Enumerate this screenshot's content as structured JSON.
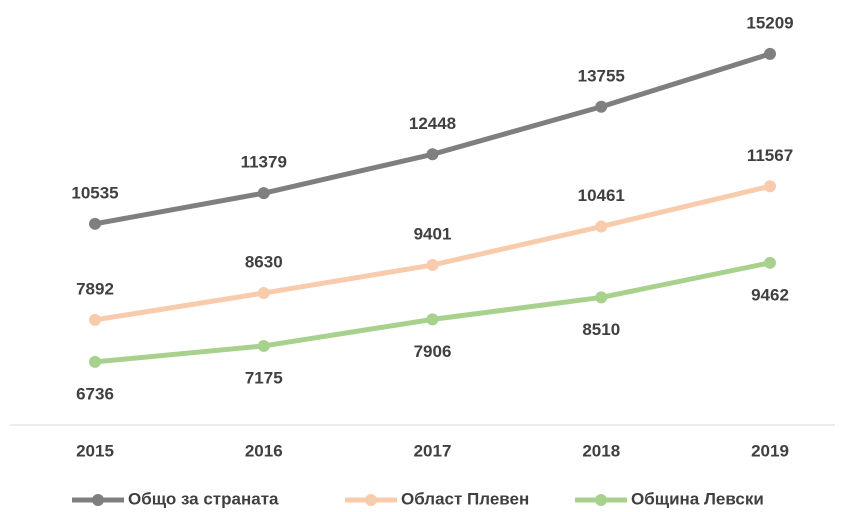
{
  "chart_data": {
    "type": "line",
    "categories": [
      "2015",
      "2016",
      "2017",
      "2018",
      "2019"
    ],
    "series": [
      {
        "name": "Общо за страната",
        "color": "#7f7f7f",
        "values": [
          10535,
          11379,
          12448,
          13755,
          15209
        ]
      },
      {
        "name": "Област Плевен",
        "color": "#f8cbad",
        "values": [
          7892,
          8630,
          9401,
          10461,
          11567
        ]
      },
      {
        "name": "Община Левски",
        "color": "#a9d18e",
        "values": [
          6736,
          7175,
          7906,
          8510,
          9462
        ]
      }
    ],
    "ylim": [
      5000,
      16500
    ],
    "grid": false,
    "legend": "bottom"
  }
}
